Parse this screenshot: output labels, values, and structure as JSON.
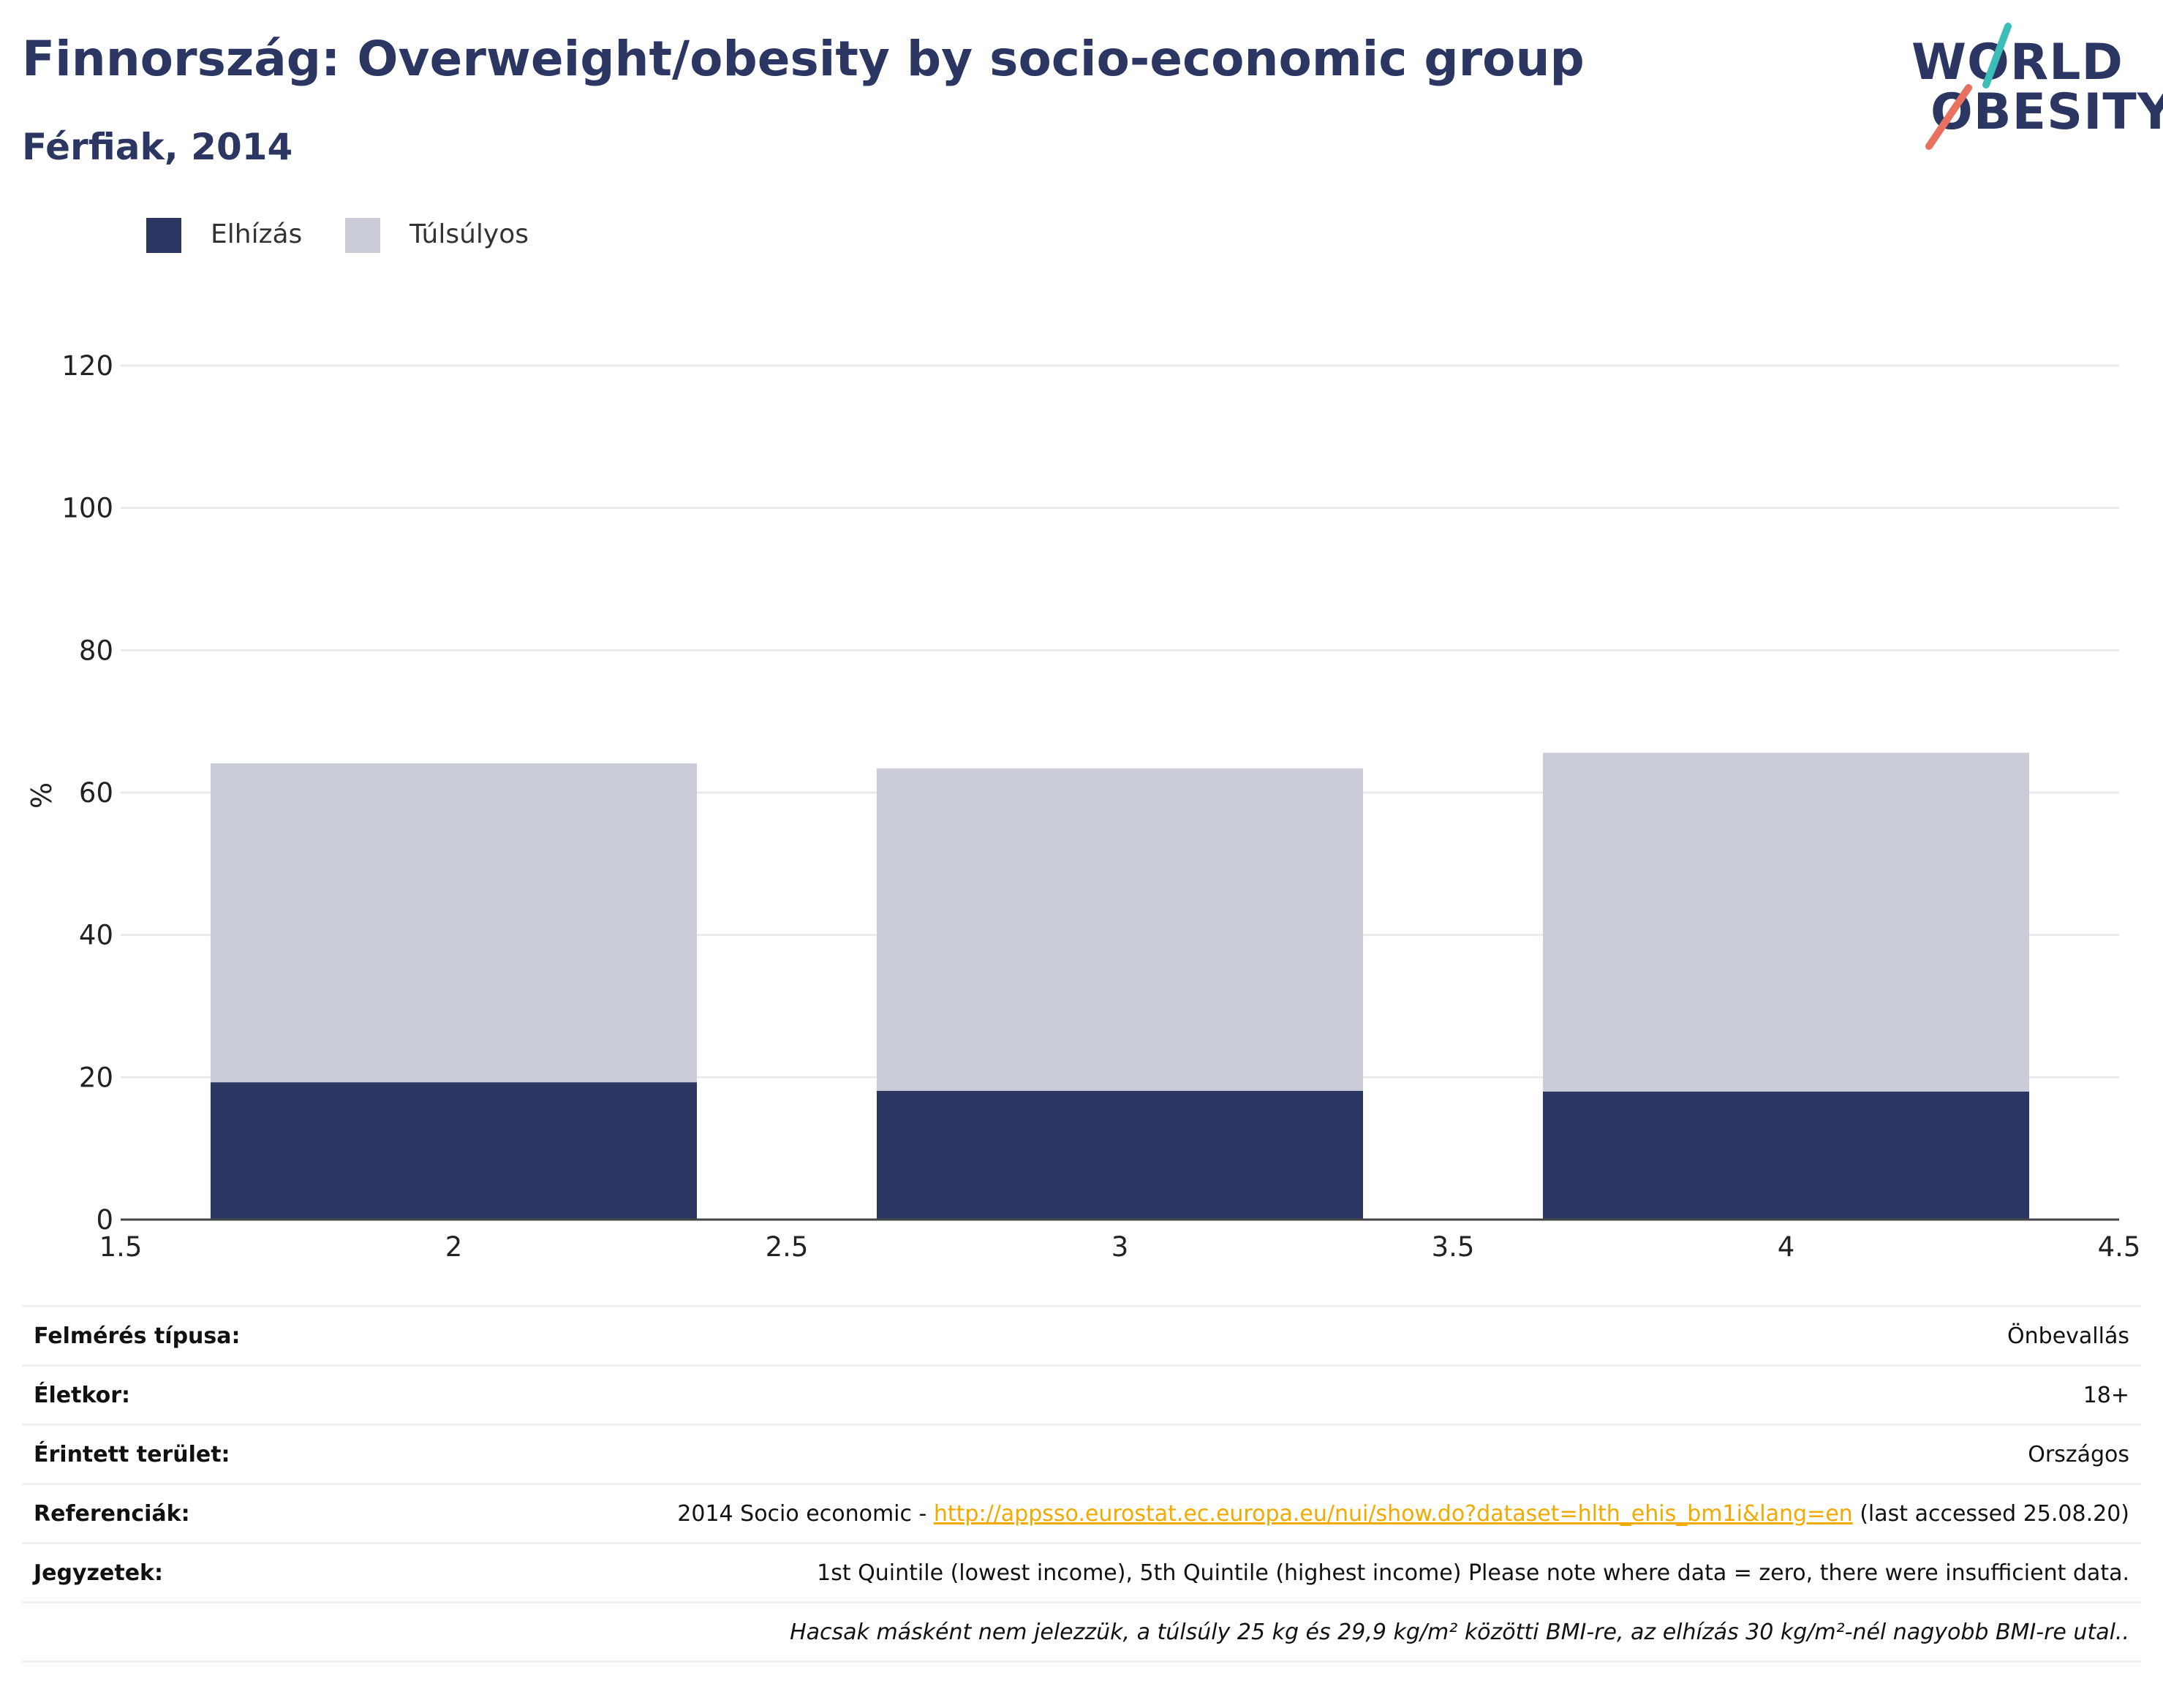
{
  "header": {
    "title": "Finnország: Overweight/obesity by socio-economic group",
    "subtitle": "Férfiak, 2014"
  },
  "logo": {
    "line1": "WORLD",
    "line2": "OBESITY",
    "slash_colors": [
      "#3dbdb7",
      "#e8715f"
    ]
  },
  "legend": [
    {
      "label": "Elhízás",
      "color": "#2b3762"
    },
    {
      "label": "Túlsúlyos",
      "color": "#cacdd8"
    }
  ],
  "chart_data": {
    "type": "bar",
    "stacked": true,
    "x": [
      2,
      3,
      4
    ],
    "series": [
      {
        "name": "Elhízás",
        "color": "#2b3762",
        "values": [
          19.3,
          18.1,
          18.0
        ]
      },
      {
        "name": "Túlsúlyos",
        "color": "#cacdd8",
        "values": [
          44.8,
          45.3,
          47.6
        ]
      }
    ],
    "xlim": [
      1.5,
      4.5
    ],
    "x_ticks": [
      "1.5",
      "2",
      "2.5",
      "3",
      "3.5",
      "4",
      "4.5"
    ],
    "ylim": [
      0,
      120
    ],
    "y_ticks": [
      "0",
      "20",
      "40",
      "60",
      "80",
      "100",
      "120"
    ],
    "ylabel": "%",
    "xlabel": "",
    "grid": true,
    "legend_position": "top-left"
  },
  "info": {
    "rows": [
      {
        "label": "Felmérés típusa:",
        "value": "Önbevallás"
      },
      {
        "label": "Életkor:",
        "value": "18+"
      },
      {
        "label": "Érintett terület:",
        "value": "Országos"
      },
      {
        "label": "Referenciák:",
        "value_prefix": "2014 Socio economic - ",
        "link": "http://appsso.eurostat.ec.europa.eu/nui/show.do?dataset=hlth_ehis_bm1i&lang=en",
        "value_suffix": " (last accessed 25.08.20)"
      },
      {
        "label": "Jegyzetek:",
        "value": "1st Quintile (lowest income), 5th Quintile (highest income) Please note where data = zero, there were insufficient data."
      },
      {
        "label": "",
        "value": "Hacsak másként nem jelezzük, a túlsúly 25 kg és 29,9 kg/m² közötti BMI-re, az elhízás 30 kg/m²-nél nagyobb BMI-re utal.."
      }
    ]
  }
}
